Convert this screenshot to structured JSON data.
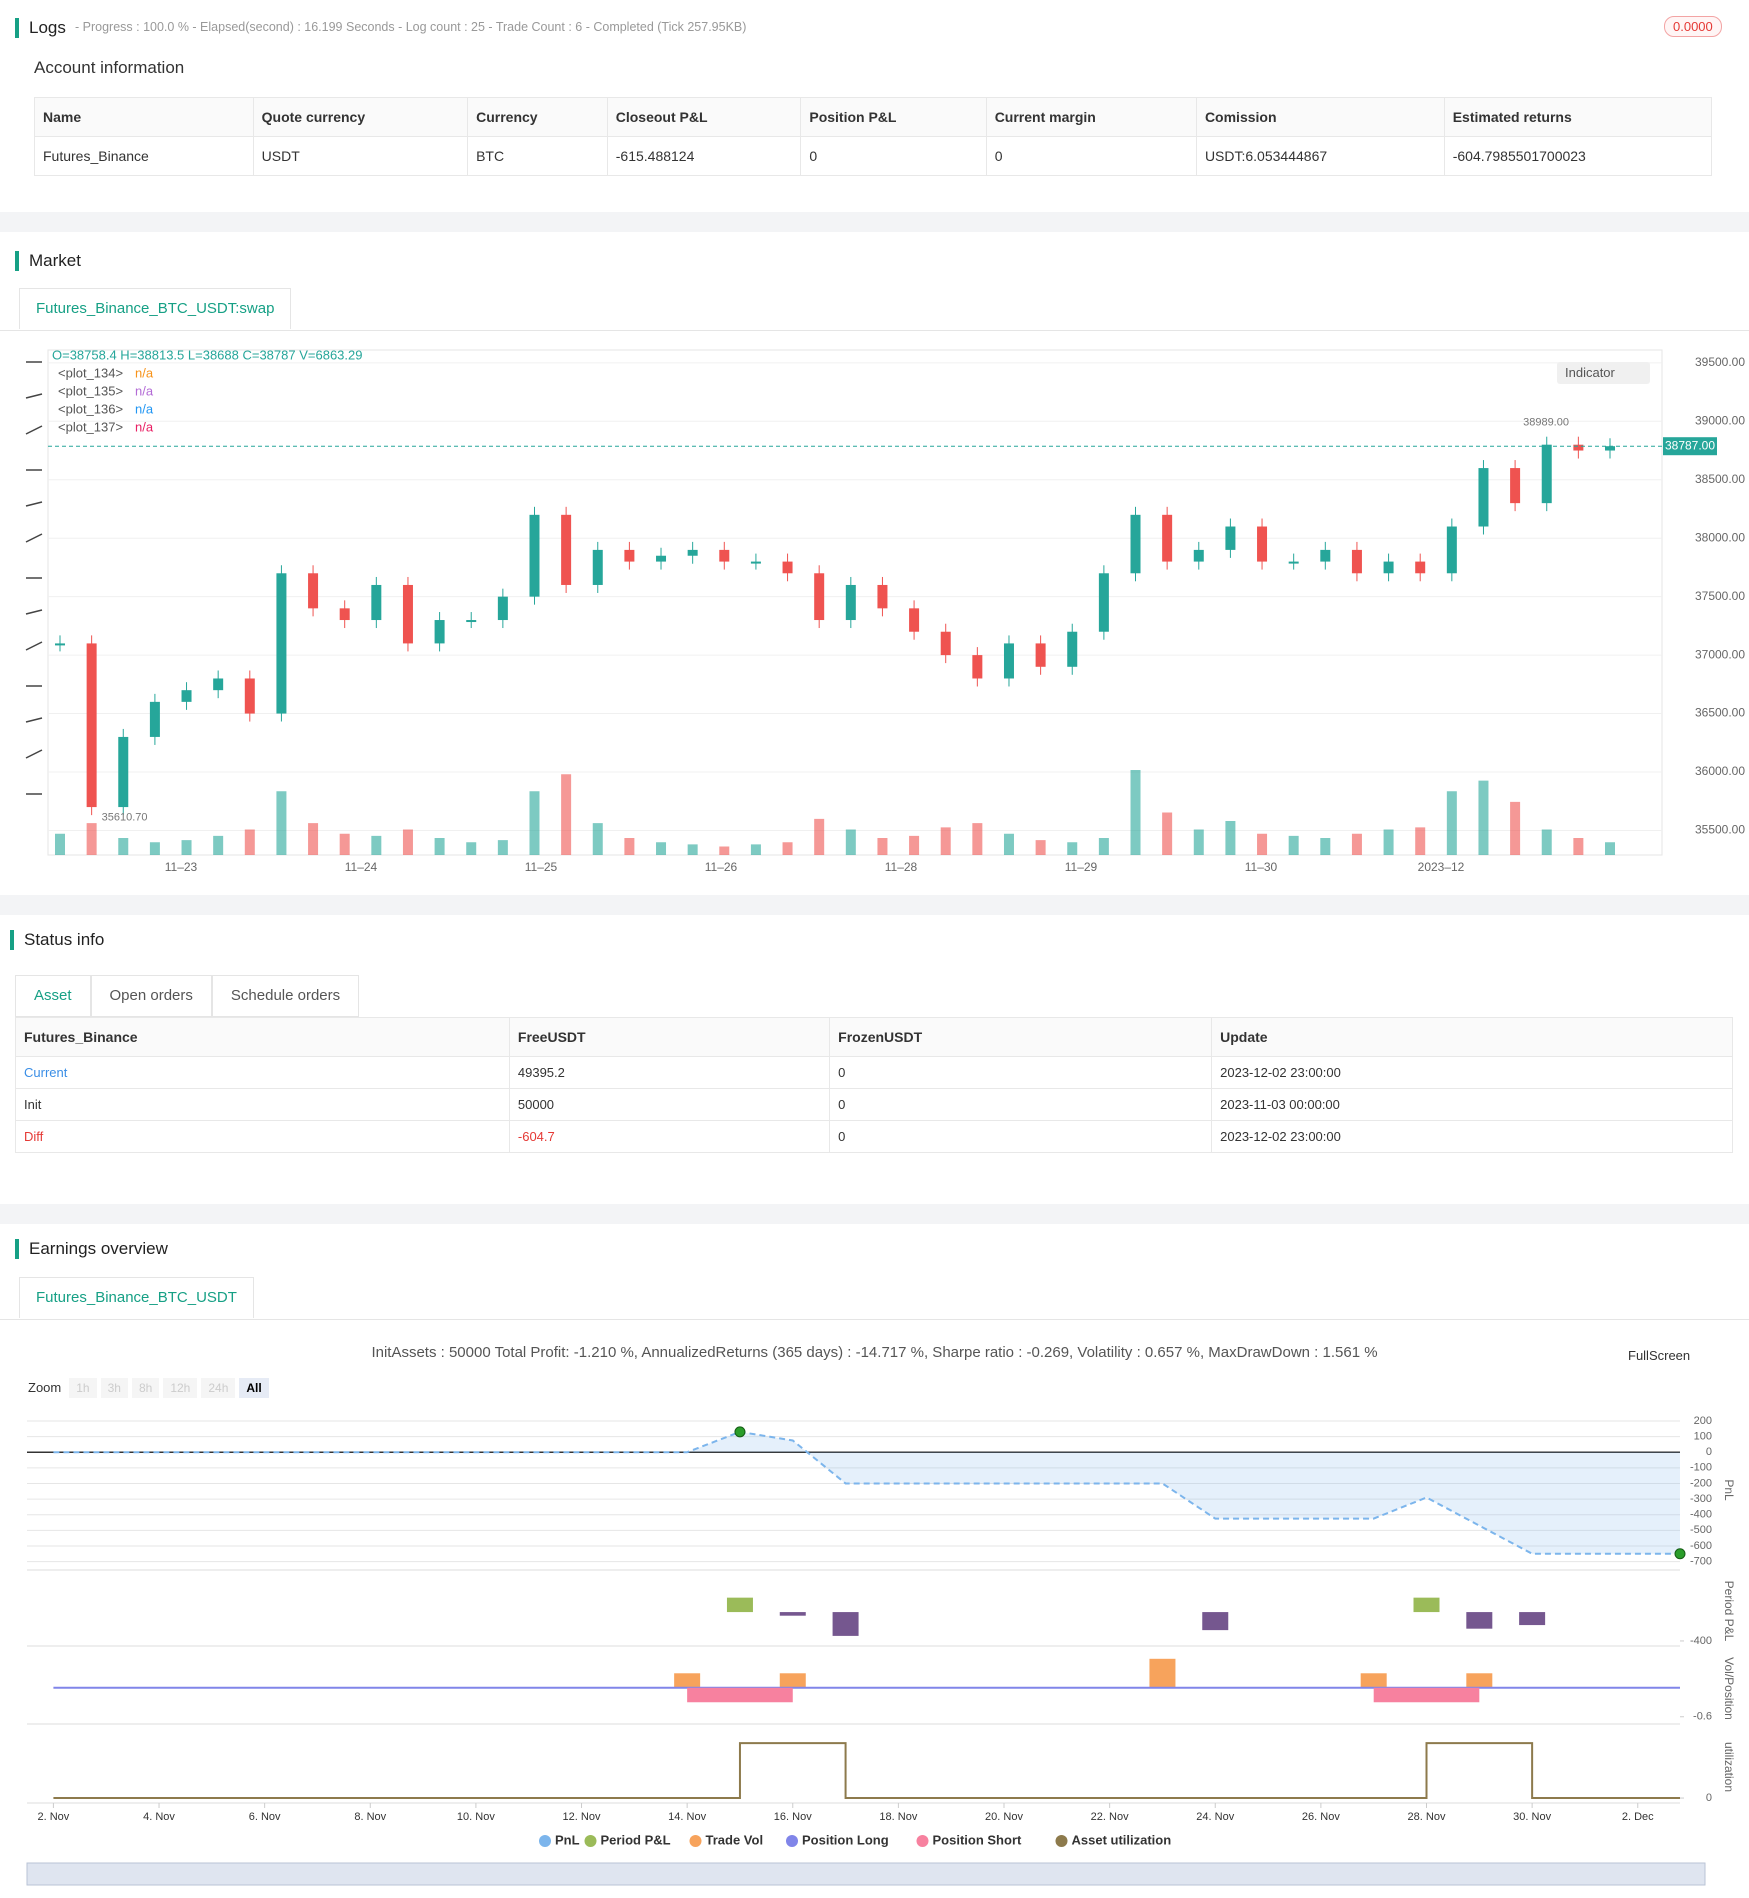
{
  "logs": {
    "title": "Logs",
    "summary": "- Progress : 100.0 % - Elapsed(second) : 16.199  Seconds - Log count : 25 - Trade Count : 6 - Completed (Tick 257.95KB)",
    "badge": "0.0000"
  },
  "account": {
    "title": "Account information",
    "columns": [
      "Name",
      "Quote currency",
      "Currency",
      "Closeout P&L",
      "Position P&L",
      "Current margin",
      "Comission",
      "Estimated returns"
    ],
    "rows": [
      [
        "Futures_Binance",
        "USDT",
        "BTC",
        "-615.488124",
        "0",
        "0",
        "USDT:6.053444867",
        "-604.7985501700023"
      ]
    ]
  },
  "market": {
    "title": "Market",
    "tab": "Futures_Binance_BTC_USDT:swap",
    "indicator_button": "Indicator",
    "chart_data": {
      "type": "candlestick",
      "ohlc_text": "O=38758.4 H=38813.5 L=38688 C=38787 V=6863.29",
      "plots": [
        {
          "name": "<plot_134>",
          "value": "n/a",
          "color": "#f7931a"
        },
        {
          "name": "<plot_135>",
          "value": "n/a",
          "color": "#b36bd6"
        },
        {
          "name": "<plot_136>",
          "value": "n/a",
          "color": "#2196f3"
        },
        {
          "name": "<plot_137>",
          "value": "n/a",
          "color": "#e91e63"
        }
      ],
      "closes": [
        37100,
        35700,
        36300,
        36600,
        36700,
        36800,
        36500,
        37700,
        37400,
        37300,
        37600,
        37100,
        37300,
        37300,
        37500,
        38200,
        37600,
        37900,
        37800,
        37850,
        37900,
        37800,
        37800,
        37700,
        37300,
        37600,
        37400,
        37200,
        37000,
        36800,
        37100,
        36900,
        37200,
        37700,
        38200,
        37800,
        37900,
        38100,
        37800,
        37800,
        37900,
        37700,
        37800,
        37700,
        38100,
        38600,
        38300,
        38800,
        38750,
        38787
      ],
      "volumes": [
        100,
        150,
        80,
        60,
        70,
        90,
        120,
        300,
        150,
        100,
        90,
        120,
        80,
        60,
        70,
        300,
        380,
        150,
        80,
        60,
        50,
        40,
        50,
        60,
        170,
        120,
        80,
        90,
        130,
        150,
        100,
        70,
        60,
        80,
        400,
        200,
        120,
        160,
        100,
        90,
        80,
        100,
        120,
        130,
        300,
        350,
        250,
        120,
        80,
        60
      ],
      "x_labels": [
        "11–23",
        "11–24",
        "11–25",
        "11–26",
        "11–28",
        "11–29",
        "11–30",
        "2023–12"
      ],
      "ylim": [
        35290,
        39610
      ],
      "yticks": [
        {
          "value": 35500,
          "label": "35500.00"
        },
        {
          "value": 36000,
          "label": "36000.00"
        },
        {
          "value": 36500,
          "label": "36500.00"
        },
        {
          "value": 37000,
          "label": "37000.00"
        },
        {
          "value": 37500,
          "label": "37500.00"
        },
        {
          "value": 38000,
          "label": "38000.00"
        },
        {
          "value": 38500,
          "label": "38500.00"
        },
        {
          "value": 39000,
          "label": "39000.00"
        },
        {
          "value": 39500,
          "label": "39500.00"
        }
      ],
      "last_price": {
        "value": 38787,
        "label": "38787.00"
      },
      "high_marker": {
        "value": 38989,
        "label": "38989.00"
      },
      "low_marker": {
        "value": 35610.7,
        "label": "35610.70"
      },
      "up_color": "#26a69a",
      "down_color": "#ef5350"
    }
  },
  "status": {
    "title": "Status info",
    "tabs": [
      "Asset",
      "Open orders",
      "Schedule orders"
    ],
    "columns": [
      "Futures_Binance",
      "FreeUSDT",
      "FrozenUSDT",
      "Update"
    ],
    "rows": [
      [
        "Current",
        "49395.2",
        "0",
        "2023-12-02 23:00:00"
      ],
      [
        "Init",
        "50000",
        "0",
        "2023-11-03 00:00:00"
      ],
      [
        "Diff",
        "-604.7",
        "0",
        "2023-12-02 23:00:00"
      ]
    ]
  },
  "earnings": {
    "title": "Earnings overview",
    "tab": "Futures_Binance_BTC_USDT",
    "fullscreen": "FullScreen",
    "zoom_label": "Zoom",
    "zoom_buttons": [
      "1h",
      "3h",
      "8h",
      "12h",
      "24h",
      "All"
    ],
    "chart_data": {
      "type": "line",
      "subtitle": "InitAssets : 50000 Total Profit: -1.210 %, AnnualizedReturns (365 days) : -14.717 %, Sharpe ratio : -0.269, Volatility : 0.657 %, MaxDrawDown : 1.561 %",
      "xlim": [
        -0.5,
        30.8
      ],
      "xticks": [
        {
          "value": 0,
          "label": "2. Nov"
        },
        {
          "value": 2,
          "label": "4. Nov"
        },
        {
          "value": 4,
          "label": "6. Nov"
        },
        {
          "value": 6,
          "label": "8. Nov"
        },
        {
          "value": 8,
          "label": "10. Nov"
        },
        {
          "value": 10,
          "label": "12. Nov"
        },
        {
          "value": 12,
          "label": "14. Nov"
        },
        {
          "value": 14,
          "label": "16. Nov"
        },
        {
          "value": 16,
          "label": "18. Nov"
        },
        {
          "value": 18,
          "label": "20. Nov"
        },
        {
          "value": 20,
          "label": "22. Nov"
        },
        {
          "value": 22,
          "label": "24. Nov"
        },
        {
          "value": 24,
          "label": "26. Nov"
        },
        {
          "value": 26,
          "label": "28. Nov"
        },
        {
          "value": 28,
          "label": "30. Nov"
        },
        {
          "value": 30,
          "label": "2. Dec"
        }
      ],
      "panels": [
        {
          "title": "PnL",
          "ylim": [
            -754,
            270
          ],
          "yticks": [
            200,
            100,
            0,
            -100,
            -200,
            -300,
            -400,
            -500,
            -600,
            -700
          ],
          "series": [
            {
              "name": "PnL",
              "kind": "area",
              "color": "#7cb5ec",
              "x": [
                0,
                12,
                13,
                14,
                15,
                21,
                22,
                25,
                26,
                28,
                30.8
              ],
              "values": [
                0,
                0,
                130,
                75,
                -200,
                -200,
                -425,
                -425,
                -290,
                -650,
                -650
              ]
            }
          ]
        },
        {
          "title": "Period P&L",
          "ylim": [
            -470,
            500
          ],
          "yticks": [
            -400
          ],
          "series": [
            {
              "name": "Period P&L",
              "kind": "bar",
              "color": "#9bbb59",
              "negative_color": "#75578f",
              "x": [
                13,
                14,
                15,
                22,
                26,
                27,
                28
              ],
              "values": [
                200,
                -50,
                -330,
                -250,
                200,
                -230,
                -180
              ]
            }
          ]
        },
        {
          "title": "Vol/Position",
          "ylim": [
            -0.75,
            0.72
          ],
          "yticks": [
            -0.6
          ],
          "series": [
            {
              "name": "Trade Vol",
              "kind": "bar",
              "color": "#f7a35c",
              "x": [
                12,
                14,
                21,
                25,
                27
              ],
              "values": [
                0.3,
                0.3,
                0.6,
                0.3,
                0.3
              ]
            },
            {
              "name": "Position Long",
              "kind": "line",
              "color": "#8085e9",
              "x": [
                0,
                30.8
              ],
              "values": [
                0,
                0
              ]
            },
            {
              "name": "Position Short",
              "kind": "span",
              "color": "#f7819f",
              "x_start": [
                12,
                25
              ],
              "x_end": [
                14,
                27
              ],
              "values": [
                -0.3,
                -0.3
              ]
            }
          ]
        },
        {
          "title": "utilization",
          "ylim": [
            -0.09,
            1.22
          ],
          "yticks": [
            0
          ],
          "series": [
            {
              "name": "Asset utilization",
              "kind": "line",
              "color": "#8d7a4c",
              "x": [
                0,
                13,
                13,
                15,
                15,
                26,
                26,
                28,
                28,
                30.8
              ],
              "values": [
                0,
                0,
                1,
                1,
                0,
                0,
                1,
                1,
                0,
                0
              ]
            }
          ]
        }
      ]
    }
  }
}
